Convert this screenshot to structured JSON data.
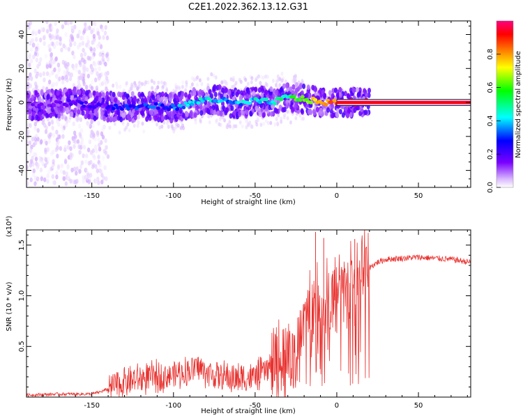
{
  "title": "C2E1.2022.362.13.12.G31",
  "colors": {
    "background": "#ffffff",
    "axis": "#000000",
    "snr_line": "#e8322f",
    "colormap": [
      "#ffffff",
      "#d9b8ff",
      "#7a00ff",
      "#0000ff",
      "#00ffff",
      "#00ff00",
      "#ffff00",
      "#ff8000",
      "#ff0000",
      "#ff0080"
    ]
  },
  "chart_data": [
    {
      "type": "heatmap",
      "name": "spectrogram",
      "xlabel": "Height of straight line (km)",
      "ylabel": "Frequency (Hz)",
      "xlim": [
        -190,
        82
      ],
      "ylim": [
        -50,
        48
      ],
      "x_ticks": [
        -150,
        -100,
        -50,
        0,
        50
      ],
      "x_tick_labels": [
        "-150",
        "-100",
        "-50",
        "0",
        "50"
      ],
      "y_ticks": [
        -40,
        -20,
        0,
        20,
        40
      ],
      "y_tick_labels": [
        "-40",
        "-20",
        "0",
        "20",
        "40"
      ],
      "grid": false,
      "colorbar": {
        "label": "Normalized spectral amplitude",
        "range": [
          0.0,
          1.0
        ],
        "ticks": [
          0.0,
          0.2,
          0.4,
          0.6,
          0.8
        ],
        "tick_labels": [
          "0.0",
          "0.2",
          "0.4",
          "0.6",
          "0.8"
        ],
        "colormap": "rainbow"
      },
      "ridge": {
        "x": [
          -190,
          -175,
          -160,
          -145,
          -130,
          -115,
          -100,
          -90,
          -80,
          -70,
          -60,
          -50,
          -40,
          -30,
          -20,
          -10,
          0,
          10,
          20,
          82
        ],
        "frequency": [
          -2,
          -1,
          0,
          -2,
          -3,
          -2,
          -3,
          -1,
          2,
          1,
          -1,
          1,
          0,
          3,
          2,
          0,
          0,
          0,
          0,
          0
        ],
        "amplitude": [
          0.2,
          0.2,
          0.25,
          0.25,
          0.3,
          0.35,
          0.35,
          0.4,
          0.45,
          0.4,
          0.4,
          0.45,
          0.45,
          0.5,
          0.6,
          0.75,
          0.8,
          0.85,
          0.9,
          0.9
        ]
      }
    },
    {
      "type": "line",
      "name": "snr",
      "xlabel": "Height of straight line (km)",
      "ylabel": "SNR (10 * v/v)",
      "y_scale_label": "(x10⁴)",
      "xlim": [
        -190,
        82
      ],
      "ylim": [
        0,
        1.65
      ],
      "x_ticks": [
        -150,
        -100,
        -50,
        0,
        50
      ],
      "x_tick_labels": [
        "-150",
        "-100",
        "-50",
        "0",
        "50"
      ],
      "y_ticks": [
        0.5,
        1.0,
        1.5
      ],
      "y_tick_labels": [
        "0.5",
        "1.0",
        "1.5"
      ],
      "grid": false,
      "x": [
        -190,
        -170,
        -150,
        -145,
        -140,
        -135,
        -130,
        -120,
        -110,
        -100,
        -90,
        -85,
        -80,
        -70,
        -60,
        -50,
        -45,
        -40,
        -35,
        -30,
        -25,
        -20,
        -15,
        -10,
        -5,
        0,
        5,
        10,
        15,
        20,
        25,
        30,
        40,
        50,
        60,
        70,
        82
      ],
      "y": [
        0.02,
        0.03,
        0.03,
        0.05,
        0.08,
        0.12,
        0.15,
        0.18,
        0.2,
        0.22,
        0.26,
        0.3,
        0.24,
        0.2,
        0.18,
        0.2,
        0.25,
        0.3,
        0.35,
        0.45,
        0.6,
        0.75,
        0.85,
        0.9,
        0.95,
        1.0,
        1.05,
        1.1,
        1.2,
        1.28,
        1.33,
        1.36,
        1.37,
        1.38,
        1.37,
        1.36,
        1.33
      ],
      "peaks": [
        {
          "x": -13,
          "y": 1.63
        },
        {
          "x": -8,
          "y": 1.57
        },
        {
          "x": 11,
          "y": 1.56
        }
      ]
    }
  ]
}
